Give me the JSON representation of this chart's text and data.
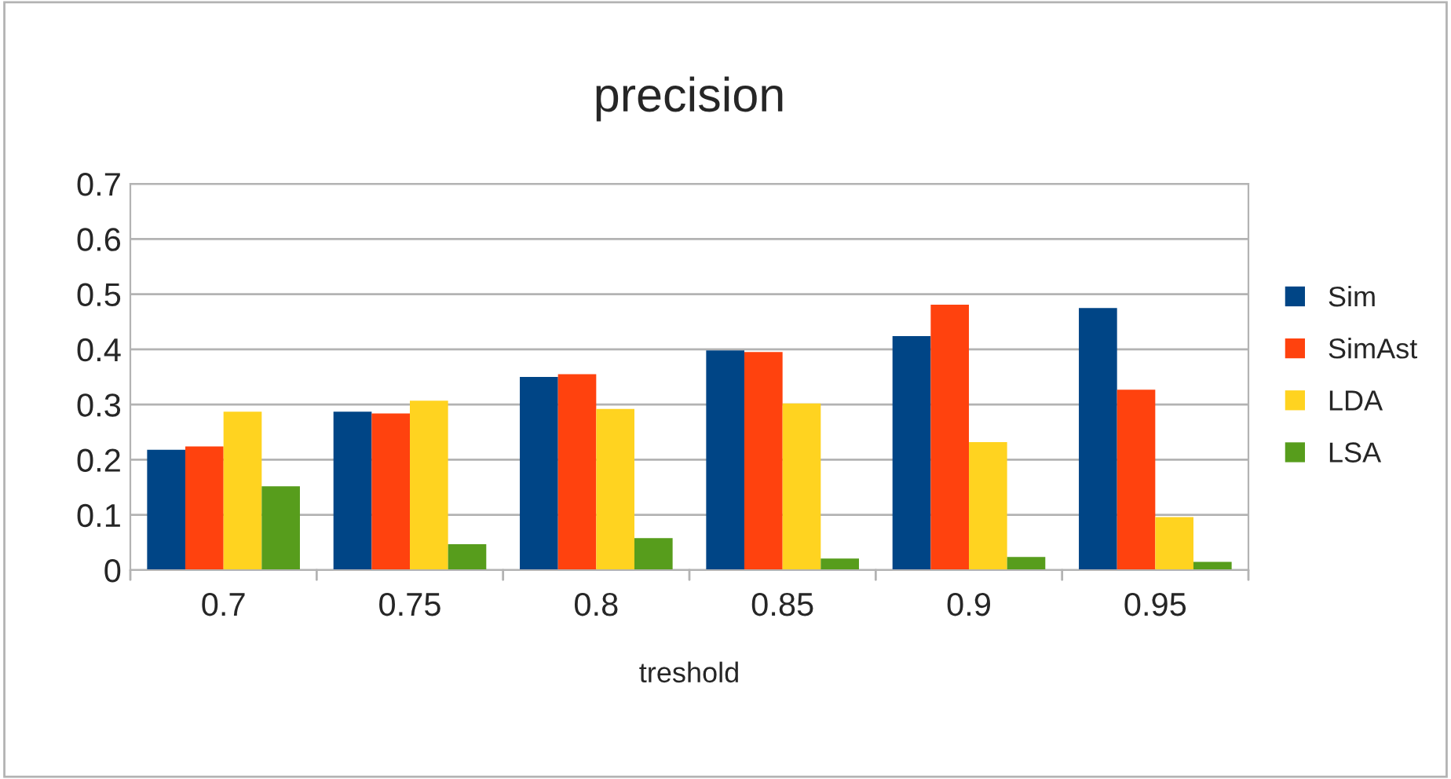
{
  "chart_data": {
    "type": "bar",
    "title": "precision",
    "xlabel": "treshold",
    "categories": [
      "0.7",
      "0.75",
      "0.8",
      "0.85",
      "0.9",
      "0.95"
    ],
    "series": [
      {
        "name": "Sim",
        "color": "#004586",
        "values": [
          0.218,
          0.287,
          0.35,
          0.398,
          0.424,
          0.475
        ]
      },
      {
        "name": "SimAst",
        "color": "#ff420e",
        "values": [
          0.224,
          0.284,
          0.355,
          0.395,
          0.481,
          0.327
        ]
      },
      {
        "name": "LDA",
        "color": "#ffd320",
        "values": [
          0.287,
          0.307,
          0.292,
          0.302,
          0.232,
          0.096
        ]
      },
      {
        "name": "LSA",
        "color": "#579d1c",
        "values": [
          0.152,
          0.047,
          0.058,
          0.021,
          0.024,
          0.015
        ]
      }
    ],
    "ylim": [
      0,
      0.7
    ],
    "yticks": [
      {
        "value": 0,
        "label": "0"
      },
      0.1,
      0.2,
      0.3,
      0.4,
      0.5,
      0.6,
      0.7
    ],
    "grid": "y",
    "legend": "right"
  }
}
